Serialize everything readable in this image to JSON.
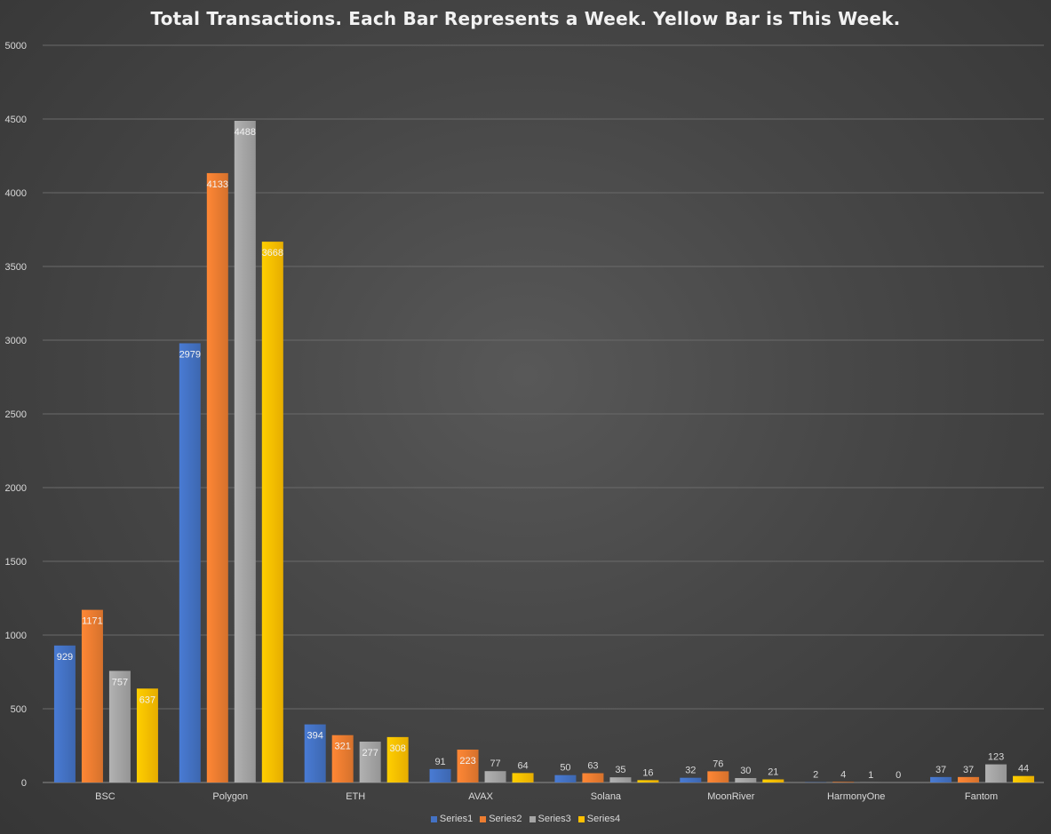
{
  "chart_data": {
    "type": "bar",
    "title": "Total Transactions. Each Bar Represents a Week. Yellow Bar is This Week.",
    "xlabel": "",
    "ylabel": "",
    "ylim": [
      0,
      5000
    ],
    "yticks": [
      0,
      500,
      1000,
      1500,
      2000,
      2500,
      3000,
      3500,
      4000,
      4500,
      5000
    ],
    "grid": true,
    "legend_position": "bottom",
    "categories": [
      "BSC",
      "Polygon",
      "ETH",
      "AVAX",
      "Solana",
      "MoonRiver",
      "HarmonyOne",
      "Fantom"
    ],
    "series": [
      {
        "name": "Series1",
        "color": "#4472c4",
        "values": [
          929,
          2979,
          394,
          91,
          50,
          32,
          2,
          37
        ]
      },
      {
        "name": "Series2",
        "color": "#ed7d31",
        "values": [
          1171,
          4133,
          321,
          223,
          63,
          76,
          4,
          37
        ]
      },
      {
        "name": "Series3",
        "color": "#a5a5a5",
        "values": [
          757,
          4488,
          277,
          77,
          35,
          30,
          1,
          123
        ]
      },
      {
        "name": "Series4",
        "color": "#ffc000",
        "values": [
          637,
          3668,
          308,
          64,
          16,
          21,
          0,
          44
        ]
      }
    ]
  }
}
